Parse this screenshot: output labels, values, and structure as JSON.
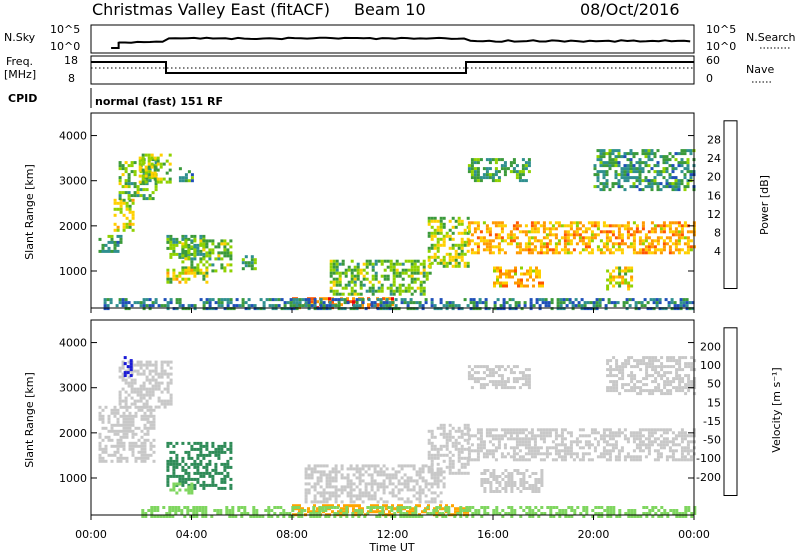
{
  "header": {
    "station": "Christmas Valley East (fitACF)",
    "beam": "Beam 10",
    "date": "08/Oct/2016"
  },
  "top_panels": {
    "nsky_label": "N.Sky",
    "nsky_ticks": [
      "10^5",
      "10^0"
    ],
    "nsearch_label": "N.Search",
    "nsearch_ticks": [
      "10^5",
      "10^0"
    ],
    "freq_label_1": "Freq.",
    "freq_label_2": "[MHz]",
    "freq_ticks": [
      "18",
      "8"
    ],
    "nave_label": "Nave",
    "nave_ticks": [
      "60",
      "0"
    ],
    "cpid_label": "CPID",
    "cpid_value": "normal (fast) 151 RF"
  },
  "chart_data": [
    {
      "type": "heatmap",
      "name": "power",
      "ylabel": "Slant Range [km]",
      "yticks": [
        "4000",
        "3000",
        "2000",
        "1000"
      ],
      "ylim": [
        180,
        4500
      ],
      "colorbar": {
        "label": "Power [dB]",
        "ticks": [
          "28",
          "24",
          "20",
          "16",
          "12",
          "8",
          "4"
        ],
        "colors": [
          "#e8000b",
          "#ff5500",
          "#ff9a00",
          "#ffd000",
          "#8fd100",
          "#3b9a3b",
          "#2f8f8f",
          "#1f4fb8",
          "#1a1ad6"
        ]
      },
      "regions": [
        {
          "t0": 0.3,
          "t1": 1.2,
          "r0": 1450,
          "r1": 1800,
          "v": 10
        },
        {
          "t0": 0.9,
          "t1": 1.7,
          "r0": 1900,
          "r1": 2600,
          "v": 18
        },
        {
          "t0": 1.1,
          "t1": 2.6,
          "r0": 2600,
          "r1": 3500,
          "v": 14
        },
        {
          "t0": 1.9,
          "t1": 3.1,
          "r0": 3000,
          "r1": 3600,
          "v": 16
        },
        {
          "t0": 3.0,
          "t1": 4.5,
          "r0": 1300,
          "r1": 1800,
          "v": 12
        },
        {
          "t0": 3.6,
          "t1": 5.6,
          "r0": 1000,
          "r1": 1700,
          "v": 14
        },
        {
          "t0": 3.5,
          "t1": 4.0,
          "r0": 3000,
          "r1": 3300,
          "v": 10
        },
        {
          "t0": 3.0,
          "t1": 4.6,
          "r0": 750,
          "r1": 1050,
          "v": 18
        },
        {
          "t0": 6.0,
          "t1": 6.5,
          "r0": 1050,
          "r1": 1350,
          "v": 12
        },
        {
          "t0": 8.0,
          "t1": 12.0,
          "r0": 200,
          "r1": 420,
          "v": 26
        },
        {
          "t0": 9.5,
          "t1": 13.5,
          "r0": 500,
          "r1": 1250,
          "v": 14
        },
        {
          "t0": 13.4,
          "t1": 15.0,
          "r0": 1100,
          "r1": 2200,
          "v": 16
        },
        {
          "t0": 15.0,
          "t1": 24.0,
          "r0": 1400,
          "r1": 2100,
          "v": 22
        },
        {
          "t0": 15.0,
          "t1": 17.5,
          "r0": 3000,
          "r1": 3500,
          "v": 12
        },
        {
          "t0": 20.0,
          "t1": 24.0,
          "r0": 2800,
          "r1": 3700,
          "v": 10
        },
        {
          "t0": 16.0,
          "t1": 18.0,
          "r0": 700,
          "r1": 1100,
          "v": 22
        },
        {
          "t0": 20.5,
          "t1": 21.5,
          "r0": 600,
          "r1": 1100,
          "v": 18
        },
        {
          "t0": 0.5,
          "t1": 24.0,
          "r0": 180,
          "r1": 400,
          "v": 8
        }
      ]
    },
    {
      "type": "heatmap",
      "name": "velocity",
      "ylabel": "Slant Range [km]",
      "yticks": [
        "4000",
        "3000",
        "2000",
        "1000"
      ],
      "ylim": [
        180,
        4500
      ],
      "colorbar": {
        "label": "Velocity [m s⁻¹]",
        "ticks": [
          "200",
          "100",
          "50",
          "15",
          "-15",
          "-50",
          "-100",
          "-200"
        ],
        "colors": [
          "#1a1ad6",
          "#1f4fb8",
          "#2e8b57",
          "#7fd65f",
          "#c8c8c8",
          "#ffa500",
          "#ff7000",
          "#e83b00",
          "#e8000b"
        ]
      },
      "regions": [
        {
          "t0": 0.3,
          "t1": 2.5,
          "r0": 1400,
          "r1": 2600,
          "v": 0
        },
        {
          "t0": 1.1,
          "t1": 3.2,
          "r0": 2600,
          "r1": 3600,
          "v": 0
        },
        {
          "t0": 1.3,
          "t1": 1.6,
          "r0": 3300,
          "r1": 3700,
          "v": 220
        },
        {
          "t0": 3.0,
          "t1": 5.6,
          "r0": 750,
          "r1": 1800,
          "v": 60
        },
        {
          "t0": 3.0,
          "t1": 4.0,
          "r0": 700,
          "r1": 900,
          "v": 30
        },
        {
          "t0": 8.0,
          "t1": 15.0,
          "r0": 200,
          "r1": 420,
          "v": -30
        },
        {
          "t0": 8.5,
          "t1": 14.0,
          "r0": 500,
          "r1": 1300,
          "v": 0
        },
        {
          "t0": 13.4,
          "t1": 15.0,
          "r0": 1100,
          "r1": 2200,
          "v": 0
        },
        {
          "t0": 15.0,
          "t1": 24.0,
          "r0": 1400,
          "r1": 2100,
          "v": 0
        },
        {
          "t0": 15.5,
          "t1": 18.0,
          "r0": 700,
          "r1": 1200,
          "v": 0
        },
        {
          "t0": 15.0,
          "t1": 17.5,
          "r0": 3000,
          "r1": 3500,
          "v": 0
        },
        {
          "t0": 20.5,
          "t1": 24.0,
          "r0": 2900,
          "r1": 3700,
          "v": 0
        },
        {
          "t0": 2.0,
          "t1": 24.0,
          "r0": 180,
          "r1": 380,
          "v": 25
        }
      ]
    }
  ],
  "xaxis": {
    "label": "Time UT",
    "ticks": [
      "00:00",
      "04:00",
      "08:00",
      "12:00",
      "16:00",
      "20:00",
      "00:00"
    ],
    "range_hours": [
      0,
      24
    ]
  },
  "colors": {
    "frame": "#000000",
    "background": "#ffffff"
  }
}
